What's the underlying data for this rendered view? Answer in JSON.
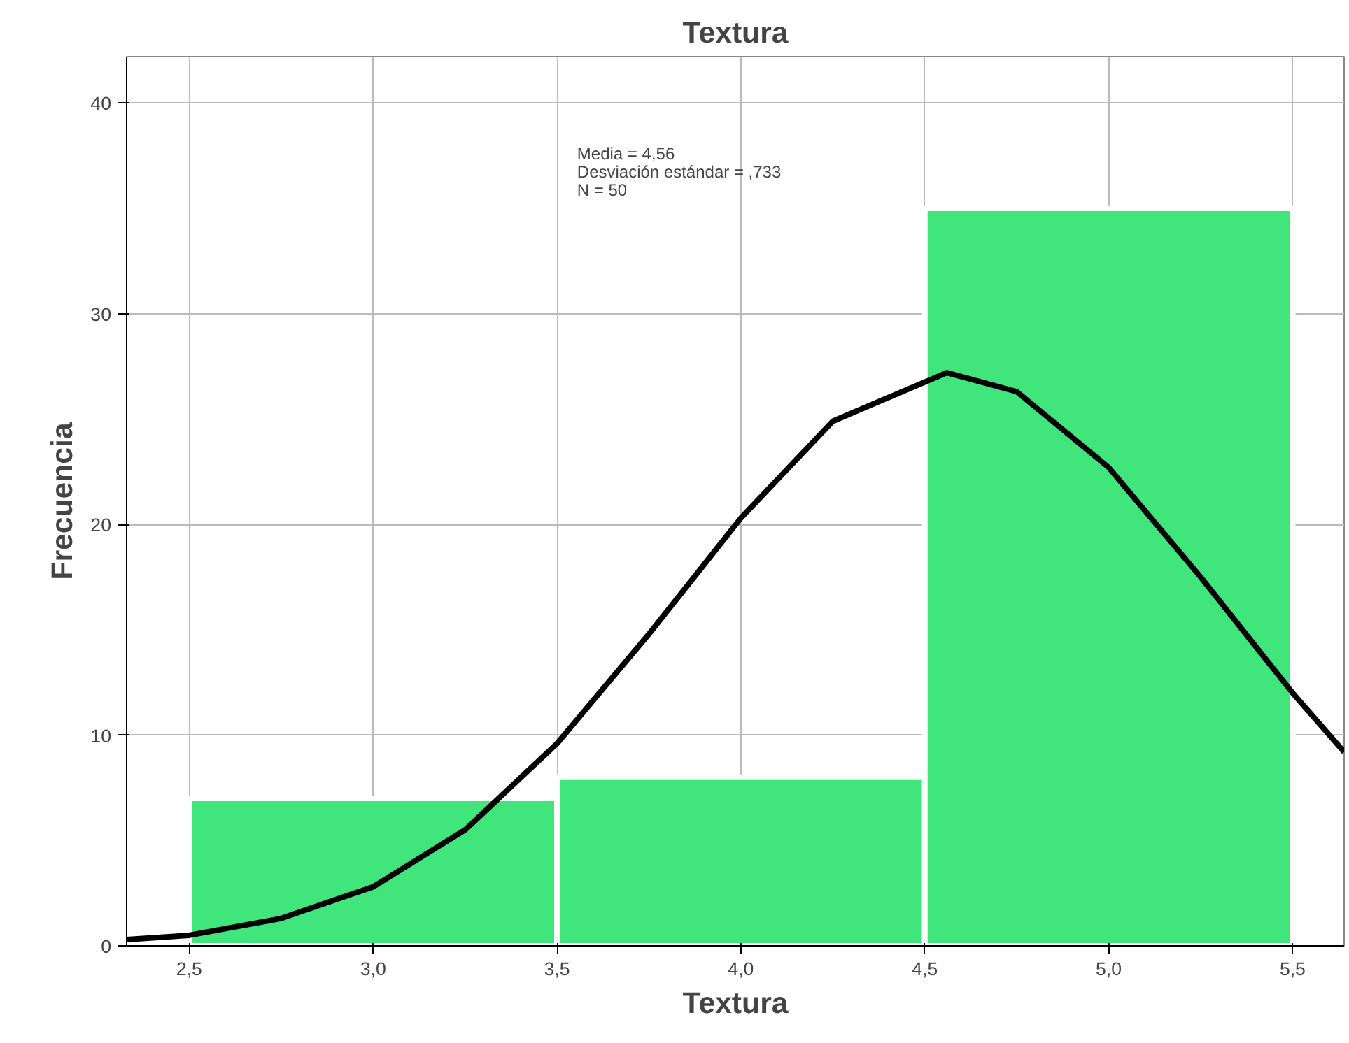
{
  "chart_data": {
    "type": "histogram",
    "title": "Textura",
    "xlabel": "Textura",
    "ylabel": "Frecuencia",
    "annotations": [
      "Media = 4,56",
      "Desviación estándar = ,733",
      "N = 50"
    ],
    "xlim": [
      2.33,
      5.64
    ],
    "ylim": [
      0,
      42.2
    ],
    "xticks": [
      {
        "value": 2.5,
        "label": "2,5"
      },
      {
        "value": 3.0,
        "label": "3,0"
      },
      {
        "value": 3.5,
        "label": "3,5"
      },
      {
        "value": 4.0,
        "label": "4,0"
      },
      {
        "value": 4.5,
        "label": "4,5"
      },
      {
        "value": 5.0,
        "label": "5,0"
      },
      {
        "value": 5.5,
        "label": "5,5"
      }
    ],
    "yticks": [
      0,
      10,
      20,
      30,
      40
    ],
    "grid": true,
    "series": [
      {
        "bins": [
          2.5,
          3.5,
          4.5,
          5.5
        ],
        "values": [
          7,
          8,
          35
        ],
        "color": "#40e67c"
      },
      {
        "type": "line",
        "color": "#000000",
        "x": [
          2.33,
          2.5,
          2.75,
          3.0,
          3.25,
          3.5,
          3.75,
          4.0,
          4.25,
          4.56,
          4.75,
          5.0,
          5.25,
          5.5,
          5.64
        ],
        "values": [
          0.3,
          0.5,
          1.3,
          2.8,
          5.5,
          9.6,
          14.8,
          20.3,
          24.9,
          27.2,
          26.3,
          22.7,
          17.5,
          12.0,
          9.2
        ]
      }
    ]
  }
}
